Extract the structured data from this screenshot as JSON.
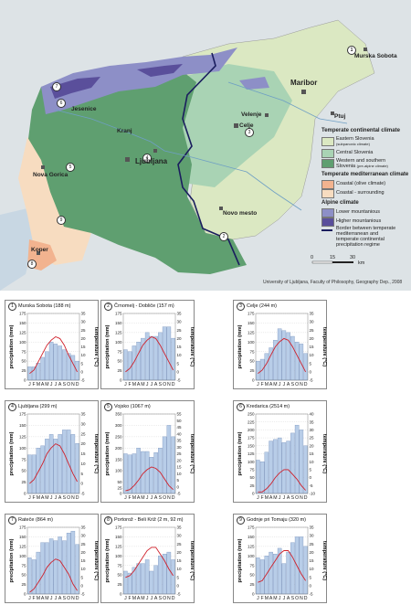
{
  "map": {
    "credit": "University of Ljubljana, Faculty of Philosophy, Geography Dep., 2008",
    "scale": {
      "ticks": [
        "0",
        "15",
        "30"
      ],
      "unit": "km"
    },
    "places": {
      "murska_sobota": "Murska Sobota",
      "maribor": "Maribor",
      "ptuj": "Ptuj",
      "velenje": "Velenje",
      "celje": "Celje",
      "kranj": "Kranj",
      "jesenice": "Jesenice",
      "ljubljana": "Ljubljana",
      "nova_gorica": "Nova Gorica",
      "novo_mesto": "Novo mesto",
      "koper": "Koper"
    },
    "markers": [
      "1",
      "2",
      "3",
      "4",
      "5",
      "6",
      "7",
      "8",
      "9"
    ],
    "legend": {
      "h1": "Temperate continental climate",
      "eastern": "Eastern Slovenia",
      "eastern_sub": "(subpanonic climate)",
      "central": "Central Slovenia",
      "western": "Western and southern",
      "western2": "Slovenia",
      "western_sub": "(pre-alpine climate)",
      "h2": "Temperate mediterranean climate",
      "coastal": "Coastal (olive climate)",
      "coastal_sur": "Coastal - surrounding",
      "h3": "Alpine climate",
      "lower": "Lower mountanious",
      "higher": "Higher mountanious",
      "border1": "Border between temperate",
      "border2": "mediterranean and",
      "border3": "temperate continental",
      "border4": "precipitation regime"
    },
    "colors": {
      "eastern": "#dbe8c2",
      "central": "#a9d3b4",
      "western": "#5f9f70",
      "coastal": "#f2b38f",
      "coastal_sur": "#f7dcc0",
      "lower": "#8d8fc7",
      "higher": "#5a4f9b",
      "sea": "#c8d7e3",
      "border": "#1a1d5e"
    }
  },
  "chart_data": [
    {
      "type": "bar+line",
      "id": "1",
      "title": "Murska Sobota (188 m)",
      "months": [
        "J",
        "F",
        "M",
        "A",
        "M",
        "J",
        "J",
        "A",
        "S",
        "O",
        "N",
        "D"
      ],
      "ylabel_left": "precipitation (mm)",
      "ylabel_right": "temperature (°C)",
      "ylim_precip": [
        0,
        175
      ],
      "ylim_temp": [
        -5,
        35
      ],
      "precip_ticks": [
        0,
        25,
        50,
        75,
        100,
        125,
        150,
        175
      ],
      "temp_ticks": [
        -5,
        0,
        5,
        10,
        15,
        20,
        25,
        30,
        35
      ],
      "precipitation": [
        35,
        35,
        45,
        60,
        75,
        100,
        95,
        90,
        80,
        70,
        65,
        50
      ],
      "temperature": [
        -1,
        1,
        6,
        11,
        16,
        19,
        21,
        20,
        16,
        10,
        5,
        0
      ]
    },
    {
      "type": "bar+line",
      "id": "2",
      "title": "Črnomelj - Dobliče (157 m)",
      "months": [
        "J",
        "F",
        "M",
        "A",
        "M",
        "J",
        "J",
        "A",
        "S",
        "O",
        "N",
        "D"
      ],
      "ylabel_left": "precipitation (mm)",
      "ylabel_right": "temperature (°C)",
      "ylim_precip": [
        0,
        175
      ],
      "ylim_temp": [
        -5,
        35
      ],
      "precip_ticks": [
        0,
        25,
        50,
        75,
        100,
        125,
        150,
        175
      ],
      "temp_ticks": [
        -5,
        0,
        5,
        10,
        15,
        20,
        25,
        30,
        35
      ],
      "precipitation": [
        80,
        75,
        90,
        100,
        110,
        125,
        115,
        115,
        125,
        140,
        140,
        110
      ],
      "temperature": [
        0,
        2,
        6,
        11,
        16,
        19,
        21,
        20,
        16,
        11,
        6,
        1
      ]
    },
    {
      "type": "bar+line",
      "id": "3",
      "title": "Celje (244 m)",
      "months": [
        "J",
        "F",
        "M",
        "A",
        "M",
        "J",
        "J",
        "A",
        "S",
        "O",
        "N",
        "D"
      ],
      "ylabel_left": "precipitation (mm)",
      "ylabel_right": "temperature (°C)",
      "ylim_precip": [
        0,
        175
      ],
      "ylim_temp": [
        -5,
        35
      ],
      "precip_ticks": [
        0,
        25,
        50,
        75,
        100,
        125,
        150,
        175
      ],
      "temp_ticks": [
        -5,
        0,
        5,
        10,
        15,
        20,
        25,
        30,
        35
      ],
      "precipitation": [
        50,
        55,
        70,
        85,
        105,
        135,
        130,
        125,
        115,
        100,
        95,
        70
      ],
      "temperature": [
        -1,
        1,
        5,
        10,
        15,
        18,
        20,
        19,
        15,
        10,
        5,
        0
      ]
    },
    {
      "type": "bar+line",
      "id": "4",
      "title": "Ljubljana (299 m)",
      "months": [
        "J",
        "F",
        "M",
        "A",
        "M",
        "J",
        "J",
        "A",
        "S",
        "O",
        "N",
        "D"
      ],
      "ylabel_left": "precipitation (mm)",
      "ylabel_right": "temperature (°C)",
      "ylim_precip": [
        0,
        175
      ],
      "ylim_temp": [
        -5,
        35
      ],
      "precip_ticks": [
        0,
        25,
        50,
        75,
        100,
        125,
        150,
        175
      ],
      "temp_ticks": [
        -5,
        0,
        5,
        10,
        15,
        20,
        25,
        30,
        35
      ],
      "precipitation": [
        85,
        85,
        100,
        105,
        120,
        130,
        120,
        130,
        140,
        140,
        130,
        110
      ],
      "temperature": [
        0,
        2,
        6,
        10,
        15,
        18,
        20,
        19,
        15,
        10,
        5,
        1
      ]
    },
    {
      "type": "bar+line",
      "id": "5",
      "title": "Vojsko (1067 m)",
      "months": [
        "J",
        "F",
        "M",
        "A",
        "M",
        "J",
        "J",
        "A",
        "S",
        "O",
        "N",
        "D"
      ],
      "ylabel_left": "precipitation (mm)",
      "ylabel_right": "temperature (°C)",
      "ylim_precip": [
        0,
        350
      ],
      "ylim_temp": [
        -5,
        55
      ],
      "precip_ticks": [
        0,
        25,
        50,
        100,
        150,
        200,
        250,
        300,
        350
      ],
      "temp_ticks": [
        -5,
        0,
        5,
        10,
        15,
        20,
        25,
        30,
        35,
        40,
        45,
        50,
        55
      ],
      "precipitation": [
        175,
        170,
        175,
        200,
        185,
        185,
        160,
        180,
        200,
        250,
        300,
        250
      ],
      "temperature": [
        -3,
        -2,
        1,
        5,
        10,
        13,
        15,
        14,
        11,
        6,
        1,
        -2
      ]
    },
    {
      "type": "bar+line",
      "id": "6",
      "title": "Kredarica (2514 m)",
      "months": [
        "J",
        "F",
        "M",
        "A",
        "M",
        "J",
        "J",
        "A",
        "S",
        "O",
        "N",
        "D"
      ],
      "ylabel_left": "precipitation (mm)",
      "ylabel_right": "temperature (°C)",
      "ylim_precip": [
        0,
        250
      ],
      "ylim_temp": [
        -10,
        40
      ],
      "precip_ticks": [
        0,
        25,
        50,
        75,
        100,
        125,
        150,
        175,
        200,
        225,
        250
      ],
      "temp_ticks": [
        -10,
        -5,
        0,
        5,
        10,
        15,
        20,
        25,
        30,
        35,
        40
      ],
      "precipitation": [
        105,
        100,
        130,
        165,
        170,
        175,
        160,
        165,
        190,
        215,
        200,
        150
      ],
      "temperature": [
        -9,
        -9,
        -7,
        -4,
        0,
        3,
        5,
        5,
        2,
        -1,
        -5,
        -8
      ]
    },
    {
      "type": "bar+line",
      "id": "7",
      "title": "Rateče (864 m)",
      "months": [
        "J",
        "F",
        "M",
        "A",
        "M",
        "J",
        "J",
        "A",
        "S",
        "O",
        "N",
        "D"
      ],
      "ylabel_left": "precipitation (mm)",
      "ylabel_right": "temperature (°C)",
      "ylim_precip": [
        0,
        175
      ],
      "ylim_temp": [
        -5,
        35
      ],
      "precip_ticks": [
        0,
        25,
        50,
        75,
        100,
        125,
        150,
        175
      ],
      "temp_ticks": [
        -5,
        0,
        5,
        10,
        15,
        20,
        25,
        30,
        35
      ],
      "precipitation": [
        95,
        90,
        110,
        135,
        135,
        145,
        140,
        150,
        140,
        160,
        165,
        130
      ],
      "temperature": [
        -4,
        -2,
        2,
        6,
        11,
        14,
        16,
        15,
        11,
        7,
        1,
        -3
      ]
    },
    {
      "type": "bar+line",
      "id": "8",
      "title": "Portorož - Beli Križ (2 m, 92 m)",
      "months": [
        "J",
        "F",
        "M",
        "A",
        "M",
        "J",
        "J",
        "A",
        "S",
        "O",
        "N",
        "D"
      ],
      "ylabel_left": "precipitation (mm)",
      "ylabel_right": "temperature (°C)",
      "ylim_precip": [
        0,
        175
      ],
      "ylim_temp": [
        -5,
        35
      ],
      "precip_ticks": [
        0,
        25,
        50,
        75,
        100,
        125,
        150,
        175
      ],
      "temp_ticks": [
        -5,
        0,
        5,
        10,
        15,
        20,
        25,
        30,
        35
      ],
      "precipitation": [
        60,
        55,
        70,
        80,
        80,
        90,
        60,
        75,
        100,
        105,
        110,
        90
      ],
      "temperature": [
        5,
        6,
        9,
        13,
        17,
        21,
        23,
        23,
        19,
        15,
        10,
        6
      ]
    },
    {
      "type": "bar+line",
      "id": "9",
      "title": "Godnje pri Tomaju (320 m)",
      "months": [
        "J",
        "F",
        "M",
        "A",
        "M",
        "J",
        "J",
        "A",
        "S",
        "O",
        "N",
        "D"
      ],
      "ylabel_left": "precipitation (mm)",
      "ylabel_right": "temperature (°C)",
      "ylim_precip": [
        0,
        175
      ],
      "ylim_temp": [
        -5,
        35
      ],
      "precip_ticks": [
        0,
        25,
        50,
        75,
        100,
        125,
        150,
        175
      ],
      "temp_ticks": [
        -5,
        0,
        5,
        10,
        15,
        20,
        25,
        30,
        35
      ],
      "precipitation": [
        95,
        90,
        100,
        110,
        105,
        120,
        80,
        110,
        135,
        150,
        150,
        125
      ],
      "temperature": [
        2,
        3,
        7,
        11,
        15,
        19,
        21,
        21,
        17,
        12,
        7,
        3
      ]
    }
  ]
}
